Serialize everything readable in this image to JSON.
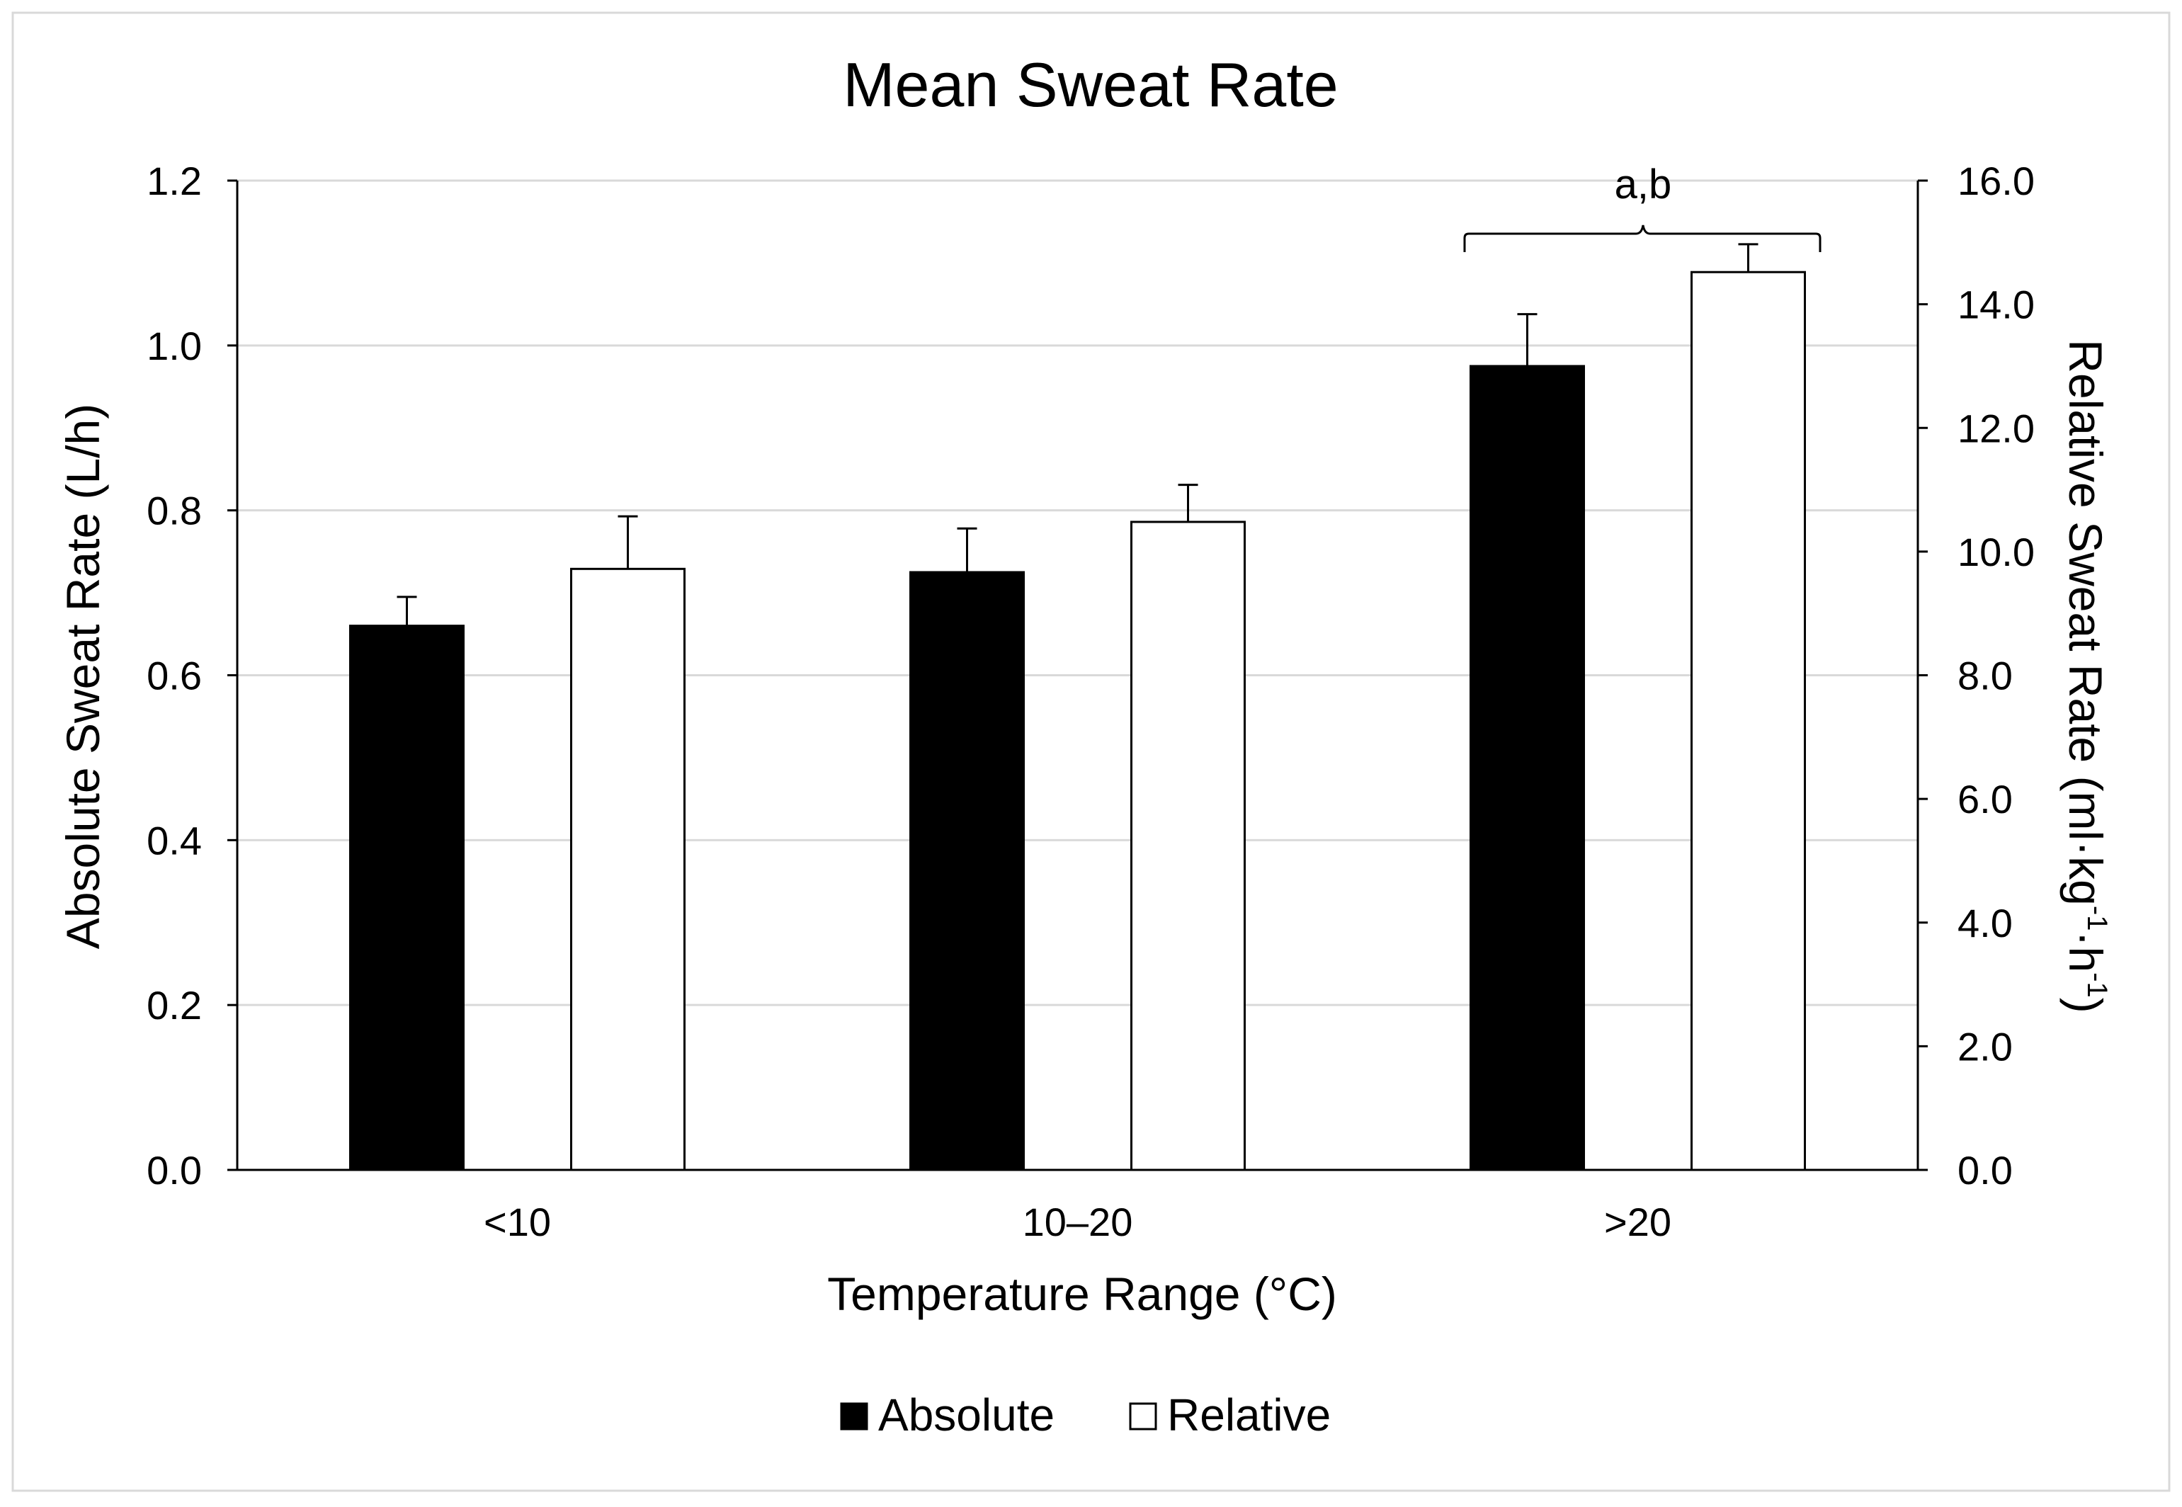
{
  "chart_data": {
    "type": "bar",
    "title": "Mean Sweat Rate",
    "xlabel": "Temperature Range (°C)",
    "ylabel": "Absolute Sweat Rate (L/h)",
    "y2label_main": "Relative Sweat Rate (ml·kg",
    "y2label_sup1": "-1",
    "y2label_mid": "·h",
    "y2label_sup2": "-1",
    "y2label_end": ")",
    "categories": [
      "<10",
      "10–20",
      ">20"
    ],
    "ylim": [
      0,
      1.2
    ],
    "y2lim": [
      0,
      16
    ],
    "yticks": [
      "0.0",
      "0.2",
      "0.4",
      "0.6",
      "0.8",
      "1.0",
      "1.2"
    ],
    "y2ticks": [
      "0.0",
      "2.0",
      "4.0",
      "6.0",
      "8.0",
      "10.0",
      "12.0",
      "14.0",
      "16.0"
    ],
    "grid": true,
    "legend_position": "bottom-center",
    "series": [
      {
        "name": "Absolute",
        "axis": "left",
        "color": "#000000",
        "values": [
          0.66,
          0.725,
          0.975
        ],
        "errors": [
          0.035,
          0.053,
          0.063
        ]
      },
      {
        "name": "Relative",
        "axis": "right",
        "color": "#ffffff",
        "values": [
          9.72,
          10.48,
          14.52
        ],
        "errors": [
          0.85,
          0.6,
          0.45
        ]
      }
    ],
    "annotations": [
      {
        "text": "a,b",
        "category": ">20"
      }
    ]
  }
}
